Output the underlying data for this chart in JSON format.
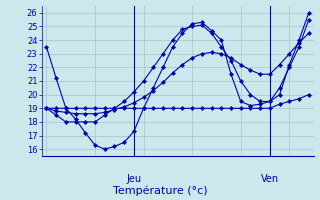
{
  "background_color": "#cce8ed",
  "grid_color": "#aacccc",
  "line_color": "#0000aa",
  "marker_color": "#0000aa",
  "title": "Température (°c)",
  "xlabel_day1": "Jeu",
  "xlabel_day2": "Ven",
  "ylim": [
    15.5,
    26.5
  ],
  "yticks": [
    16,
    17,
    18,
    19,
    20,
    21,
    22,
    23,
    24,
    25,
    26
  ],
  "series": [
    [
      23.5,
      21.2,
      19.0,
      18.2,
      17.2,
      16.3,
      16.0,
      16.2,
      16.5,
      17.3,
      19.0,
      20.5,
      22.0,
      23.5,
      24.5,
      25.2,
      25.3,
      24.7,
      24.0,
      21.5,
      19.5,
      19.2,
      19.3,
      19.5,
      20.0,
      22.2,
      24.0,
      26.0
    ],
    [
      19.0,
      18.5,
      18.0,
      18.0,
      18.0,
      18.0,
      18.5,
      19.0,
      19.5,
      20.2,
      21.0,
      22.0,
      23.0,
      24.0,
      24.8,
      25.0,
      25.1,
      24.5,
      23.5,
      22.5,
      21.0,
      20.0,
      19.5,
      19.5,
      20.5,
      22.0,
      23.5,
      25.5
    ],
    [
      19.0,
      18.8,
      18.7,
      18.6,
      18.6,
      18.6,
      18.7,
      18.9,
      19.1,
      19.4,
      19.8,
      20.3,
      20.9,
      21.6,
      22.2,
      22.7,
      23.0,
      23.1,
      23.0,
      22.7,
      22.2,
      21.8,
      21.5,
      21.5,
      22.2,
      23.0,
      23.8,
      24.5
    ],
    [
      19.0,
      19.0,
      19.0,
      19.0,
      19.0,
      19.0,
      19.0,
      19.0,
      19.0,
      19.0,
      19.0,
      19.0,
      19.0,
      19.0,
      19.0,
      19.0,
      19.0,
      19.0,
      19.0,
      19.0,
      19.0,
      19.0,
      19.0,
      19.0,
      19.3,
      19.5,
      19.7,
      20.0
    ]
  ],
  "n_points": 28,
  "day1_x": 9,
  "day2_x": 23,
  "xlim": [
    -0.5,
    27.5
  ],
  "figsize": [
    3.2,
    2.0
  ],
  "dpi": 100
}
